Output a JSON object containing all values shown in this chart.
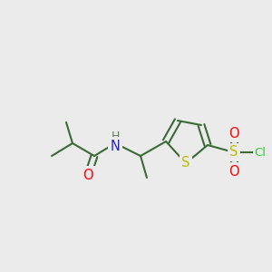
{
  "bg_color": "#ebebeb",
  "bond_color": "#3a6b35",
  "bond_width": 1.5,
  "atom_colors": {
    "O": "#ff0000",
    "N": "#2222cc",
    "S_thio": "#bbbb00",
    "S_sulfonyl": "#bbbb00",
    "Cl": "#33cc33",
    "H": "#5a8055"
  },
  "font_size": 9.5,
  "fig_width": 3.0,
  "fig_height": 3.0,
  "dpi": 100
}
